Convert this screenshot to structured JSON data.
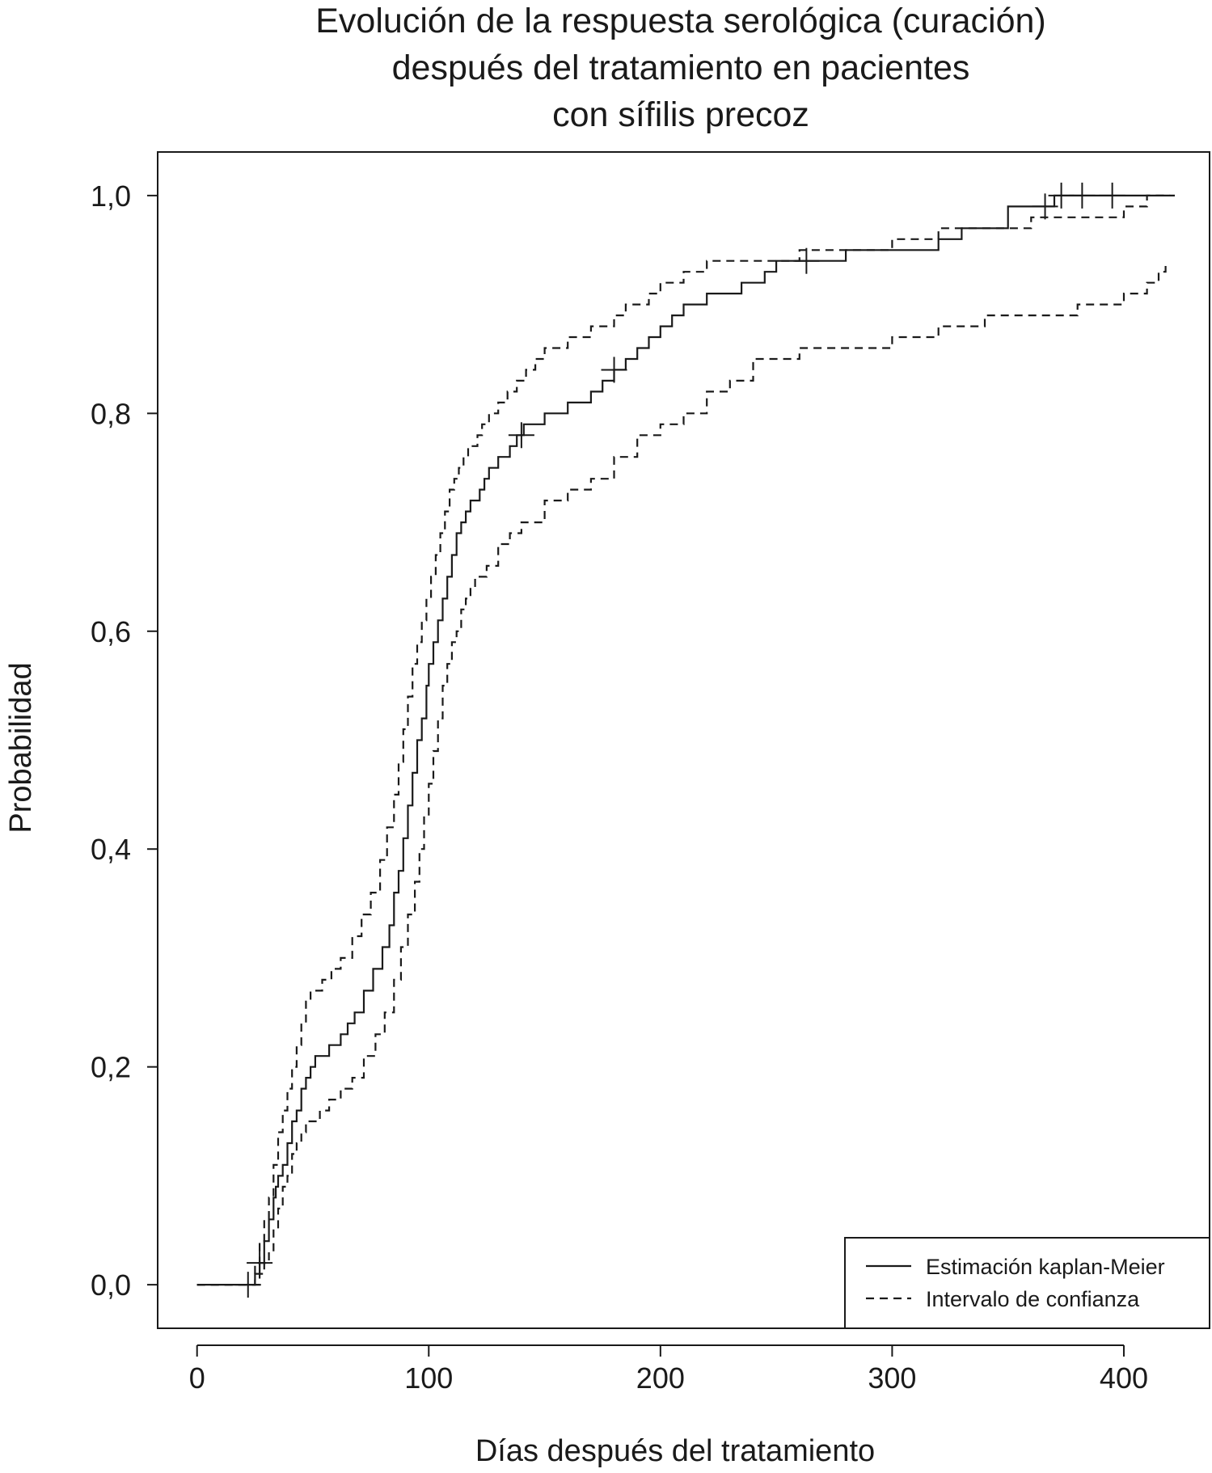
{
  "chart_data": {
    "type": "line",
    "title_lines": [
      "Evolución de la respuesta serológica (curación)",
      "después del tratamiento en pacientes",
      "con sífilis precoz"
    ],
    "xlabel": "Días después del tratamiento",
    "ylabel": "Probabilidad",
    "xlim": [
      -17,
      437
    ],
    "ylim": [
      -0.04,
      1.04
    ],
    "xticks": [
      0,
      100,
      200,
      300,
      400
    ],
    "xtick_labels": [
      "0",
      "100",
      "200",
      "300",
      "400"
    ],
    "yticks": [
      0,
      0.2,
      0.4,
      0.6,
      0.8,
      1.0
    ],
    "ytick_labels": [
      "0,0",
      "0,2",
      "0,4",
      "0,6",
      "0,8",
      "1,0"
    ],
    "grid": false,
    "legend_position": "bottom-right",
    "series": [
      {
        "name": "Estimación kaplan-Meier",
        "line_style": "solid",
        "color": "#1a1a1a",
        "step": true,
        "x": [
          0,
          25,
          27,
          29,
          31,
          33,
          34,
          35,
          37,
          39,
          41,
          43,
          45,
          47,
          49,
          51,
          53,
          57,
          62,
          65,
          68,
          72,
          76,
          80,
          83,
          85,
          87,
          89,
          91,
          93,
          95,
          97,
          99,
          100,
          102,
          104,
          106,
          108,
          110,
          112,
          114,
          116,
          118,
          120,
          122,
          124,
          126,
          130,
          135,
          138,
          141,
          145,
          150,
          160,
          170,
          175,
          180,
          185,
          190,
          195,
          200,
          205,
          210,
          215,
          220,
          225,
          230,
          235,
          240,
          245,
          250,
          260,
          280,
          300,
          310,
          320,
          330,
          340,
          350,
          370,
          390,
          400,
          410,
          413,
          416,
          419,
          422
        ],
        "y": [
          0,
          0.01,
          0.02,
          0.04,
          0.06,
          0.08,
          0.09,
          0.1,
          0.11,
          0.13,
          0.15,
          0.16,
          0.18,
          0.19,
          0.2,
          0.21,
          0.21,
          0.22,
          0.23,
          0.24,
          0.25,
          0.27,
          0.29,
          0.31,
          0.33,
          0.36,
          0.38,
          0.41,
          0.44,
          0.47,
          0.5,
          0.52,
          0.55,
          0.57,
          0.59,
          0.61,
          0.63,
          0.65,
          0.67,
          0.69,
          0.7,
          0.71,
          0.72,
          0.72,
          0.73,
          0.74,
          0.75,
          0.76,
          0.77,
          0.78,
          0.79,
          0.79,
          0.8,
          0.81,
          0.82,
          0.83,
          0.84,
          0.85,
          0.86,
          0.87,
          0.88,
          0.89,
          0.9,
          0.9,
          0.91,
          0.91,
          0.91,
          0.92,
          0.92,
          0.93,
          0.94,
          0.94,
          0.95,
          0.95,
          0.95,
          0.96,
          0.97,
          0.97,
          0.99,
          1.0,
          1.0,
          1.0,
          1.0,
          1.0,
          1.0,
          1.0,
          1.0
        ],
        "censored_x": [
          22,
          27,
          140,
          180,
          263,
          366,
          373,
          382,
          395
        ]
      },
      {
        "name": "Intervalo de confianza",
        "line_style": "dashed",
        "color": "#1a1a1a",
        "step": true,
        "bound": "upper",
        "x": [
          0,
          25,
          27,
          29,
          31,
          33,
          35,
          37,
          39,
          41,
          43,
          45,
          47,
          49,
          51,
          54,
          58,
          62,
          67,
          71,
          75,
          79,
          82,
          85,
          87,
          89,
          91,
          93,
          95,
          97,
          99,
          101,
          103,
          105,
          107,
          109,
          111,
          113,
          115,
          117,
          119,
          121,
          123,
          126,
          130,
          134,
          138,
          142,
          146,
          150,
          160,
          170,
          180,
          185,
          190,
          195,
          200,
          210,
          220,
          230,
          240,
          250,
          260,
          280,
          300,
          320,
          340,
          360,
          380,
          400,
          410,
          415,
          420
        ],
        "y": [
          0,
          0.02,
          0.04,
          0.06,
          0.08,
          0.11,
          0.14,
          0.16,
          0.18,
          0.2,
          0.22,
          0.24,
          0.26,
          0.27,
          0.27,
          0.28,
          0.29,
          0.3,
          0.32,
          0.34,
          0.36,
          0.39,
          0.42,
          0.45,
          0.48,
          0.51,
          0.54,
          0.57,
          0.59,
          0.61,
          0.63,
          0.65,
          0.67,
          0.69,
          0.71,
          0.73,
          0.74,
          0.75,
          0.76,
          0.77,
          0.77,
          0.78,
          0.79,
          0.8,
          0.81,
          0.82,
          0.83,
          0.84,
          0.85,
          0.86,
          0.87,
          0.88,
          0.89,
          0.9,
          0.9,
          0.91,
          0.92,
          0.93,
          0.94,
          0.94,
          0.94,
          0.94,
          0.95,
          0.95,
          0.96,
          0.97,
          0.97,
          0.98,
          0.98,
          0.99,
          1.0,
          1.0,
          1.0
        ]
      },
      {
        "name": "Intervalo de confianza",
        "line_style": "dashed",
        "color": "#1a1a1a",
        "step": true,
        "bound": "lower",
        "x": [
          0,
          27,
          29,
          31,
          33,
          35,
          37,
          39,
          41,
          43,
          45,
          47,
          50,
          53,
          57,
          62,
          67,
          72,
          77,
          81,
          85,
          88,
          91,
          94,
          96,
          98,
          100,
          102,
          104,
          106,
          108,
          110,
          112,
          114,
          116,
          118,
          120,
          125,
          130,
          135,
          140,
          150,
          160,
          170,
          180,
          190,
          200,
          210,
          220,
          230,
          240,
          250,
          260,
          280,
          300,
          320,
          340,
          360,
          380,
          400,
          410,
          415,
          418
        ],
        "y": [
          0,
          0.01,
          0.02,
          0.03,
          0.05,
          0.07,
          0.09,
          0.1,
          0.12,
          0.13,
          0.14,
          0.15,
          0.15,
          0.16,
          0.17,
          0.18,
          0.19,
          0.21,
          0.23,
          0.25,
          0.28,
          0.31,
          0.34,
          0.37,
          0.4,
          0.43,
          0.46,
          0.49,
          0.52,
          0.55,
          0.57,
          0.59,
          0.6,
          0.62,
          0.63,
          0.64,
          0.65,
          0.66,
          0.68,
          0.69,
          0.7,
          0.72,
          0.73,
          0.74,
          0.76,
          0.78,
          0.79,
          0.8,
          0.82,
          0.83,
          0.85,
          0.85,
          0.86,
          0.86,
          0.87,
          0.88,
          0.89,
          0.89,
          0.9,
          0.91,
          0.92,
          0.93,
          0.94
        ]
      }
    ],
    "legend": [
      {
        "label": "Estimación kaplan-Meier",
        "line_style": "solid"
      },
      {
        "label": "Intervalo de confianza",
        "line_style": "dashed"
      }
    ]
  }
}
